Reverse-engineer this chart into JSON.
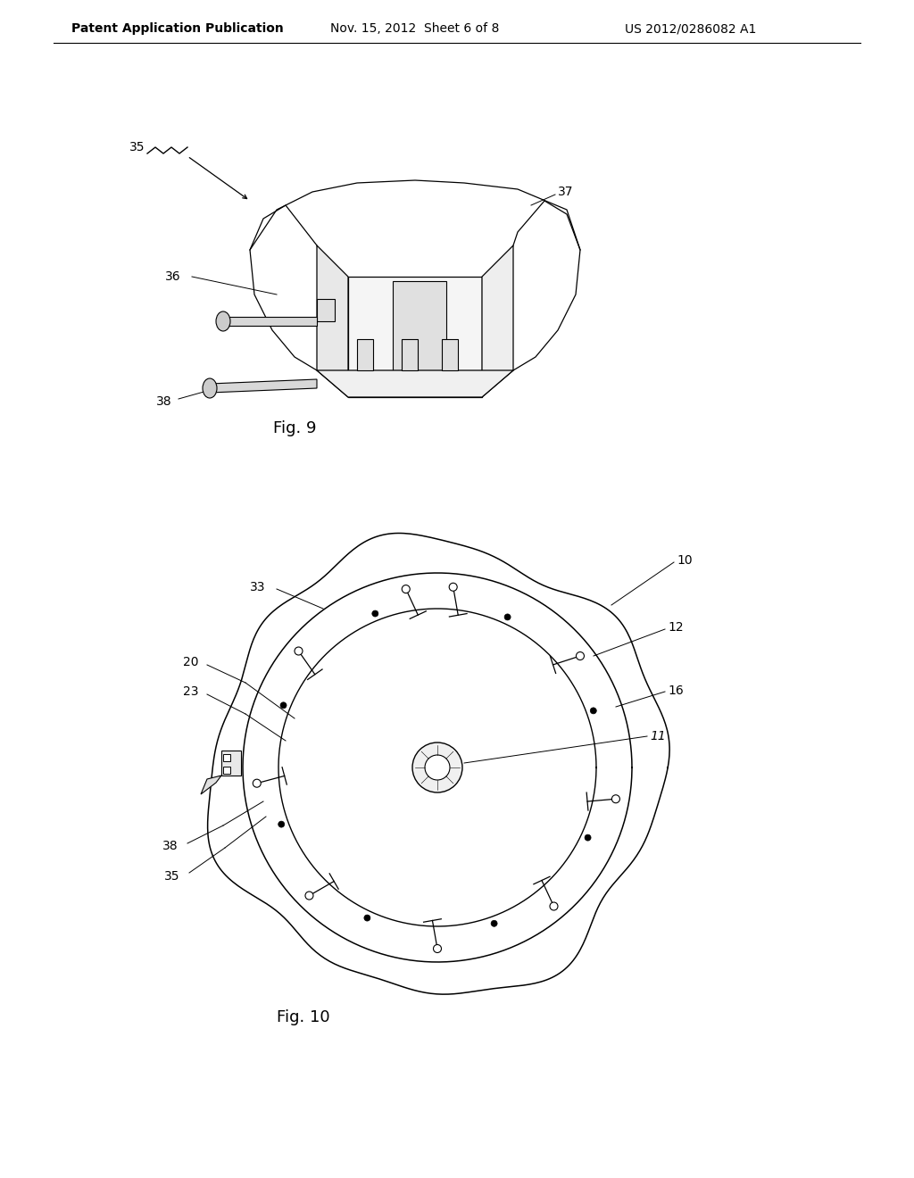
{
  "background_color": "#ffffff",
  "header_text": "Patent Application Publication",
  "header_date": "Nov. 15, 2012  Sheet 6 of 8",
  "header_patent": "US 2012/0286082 A1",
  "fig9_label": "Fig. 9",
  "fig10_label": "Fig. 10",
  "text_color": "#000000",
  "line_color": "#000000",
  "header_fontsize": 10,
  "fig_label_fontsize": 13,
  "ref_fontsize": 10
}
